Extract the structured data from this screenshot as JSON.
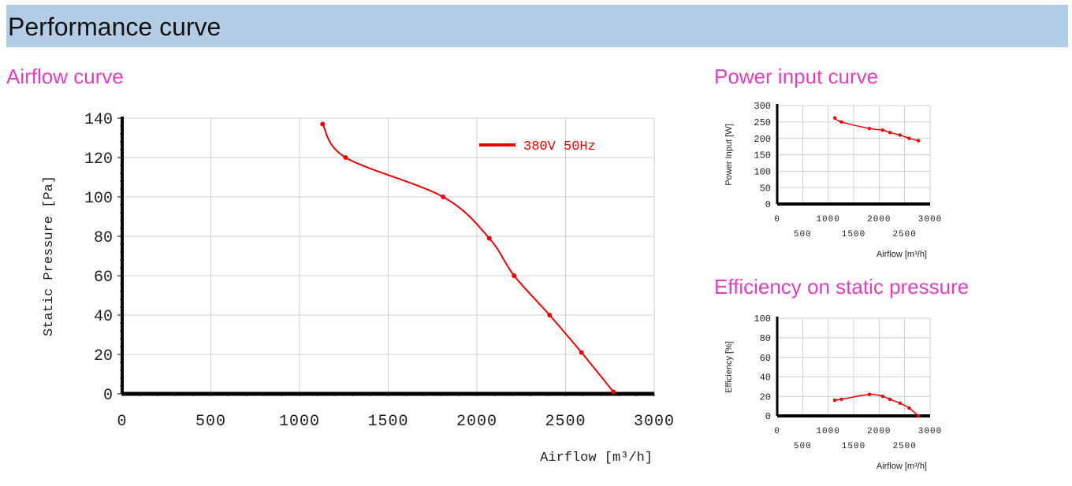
{
  "header": {
    "title": "Performance curve"
  },
  "colors": {
    "series": "#ee0000",
    "grid": "#d0d0d0",
    "axis": "#000000",
    "header_bg": "#b3cde6",
    "section_title": "#e040c0"
  },
  "chart_data": [
    {
      "id": "airflow",
      "type": "line",
      "title": "Airflow curve",
      "xlabel": "Airflow [m³/h]",
      "ylabel": "Static Pressure [Pa]",
      "xlim": [
        0,
        3000
      ],
      "ylim": [
        0,
        140
      ],
      "xticks": [
        "0",
        "500",
        "1000",
        "1500",
        "2000",
        "2500",
        "3000"
      ],
      "yticks": [
        "0",
        "20",
        "40",
        "60",
        "80",
        "100",
        "120",
        "140"
      ],
      "grid": true,
      "legend": "top-right",
      "series": [
        {
          "name": "380V 50Hz",
          "x": [
            1130,
            1260,
            1810,
            2070,
            2210,
            2410,
            2590,
            2770
          ],
          "y": [
            137,
            120,
            100,
            79,
            60,
            40,
            21,
            1
          ]
        }
      ]
    },
    {
      "id": "power",
      "type": "line",
      "title": "Power input curve",
      "xlabel": "Airflow [m³/h]",
      "ylabel": "Power Input [W]",
      "xlim": [
        0,
        3000
      ],
      "ylim": [
        0,
        300
      ],
      "xticks_upper": [
        "0",
        "1000",
        "2000",
        "3000"
      ],
      "xticks_lower": [
        "500",
        "1500",
        "2500"
      ],
      "yticks": [
        "0",
        "50",
        "100",
        "150",
        "200",
        "250",
        "300"
      ],
      "grid": true,
      "series": [
        {
          "x": [
            1130,
            1260,
            1810,
            2070,
            2210,
            2410,
            2590,
            2770
          ],
          "y": [
            262,
            250,
            230,
            225,
            218,
            210,
            200,
            193
          ]
        }
      ]
    },
    {
      "id": "efficiency",
      "type": "line",
      "title": "Efficiency on static pressure",
      "xlabel": "Airflow [m³/h]",
      "ylabel": "Efficiency [%]",
      "xlim": [
        0,
        3000
      ],
      "ylim": [
        0,
        100
      ],
      "xticks_upper": [
        "0",
        "1000",
        "2000",
        "3000"
      ],
      "xticks_lower": [
        "500",
        "1500",
        "2500"
      ],
      "yticks": [
        "0",
        "20",
        "40",
        "60",
        "80",
        "100"
      ],
      "grid": true,
      "series": [
        {
          "x": [
            1130,
            1260,
            1810,
            2070,
            2210,
            2410,
            2590,
            2770
          ],
          "y": [
            16,
            17,
            22,
            20,
            17,
            13,
            8,
            0
          ]
        }
      ]
    }
  ]
}
